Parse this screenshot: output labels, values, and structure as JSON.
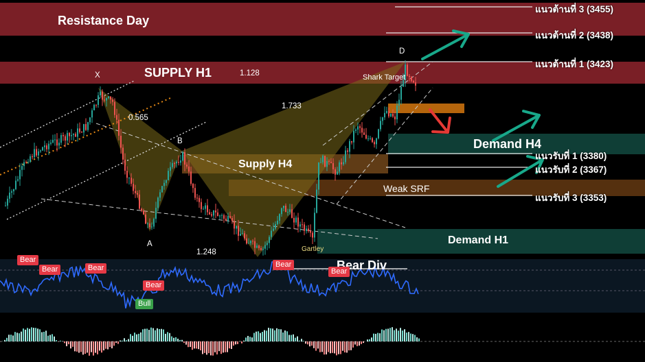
{
  "colors": {
    "up_candle": "#26a69a",
    "down_candle": "#ef5350",
    "resistance_zone": "#7a1f26",
    "demand_zone": "#0f3e36",
    "supply_h4": "#7a4a1a",
    "rsi_line": "#2f6bff",
    "bear_badge": "#e53945",
    "bull_badge": "#3aa14a",
    "arrow_teal": "#18a88a",
    "arrow_red": "#e53935",
    "fib_orange": "#e88a14"
  },
  "zones": {
    "resistance_day": "Resistance Day",
    "supply_h1": "SUPPLY H1",
    "supply_h4": "Supply H4",
    "weak_srf": "Weak SRF",
    "demand_h4": "Demand H4",
    "demand_h1": "Demand H1"
  },
  "levels": [
    {
      "label": "แนวต้านที่ 3 (3455)",
      "price": 3455
    },
    {
      "label": "แนวต้านที่ 2 (3438)",
      "price": 3438
    },
    {
      "label": "แนวต้านที่ 1 (3423)",
      "price": 3423
    },
    {
      "label": "แนวรับที่ 1 (3380)",
      "price": 3380
    },
    {
      "label": "แนวรับที่ 2 (3367)",
      "price": 3367
    },
    {
      "label": "แนวรับที่ 3 (3353)",
      "price": 3353
    }
  ],
  "pattern": {
    "points": {
      "x": "X",
      "a": "A",
      "b": "B",
      "d": "D"
    },
    "ratios": {
      "r1": "1.128",
      "r2": "0.565",
      "r3": "1.733",
      "r4": "1.248"
    },
    "shark_target": "Shark Target",
    "gartley": "Gartley"
  },
  "indicator": {
    "bear_div": "Bear Div",
    "badges": [
      {
        "type": "bear",
        "text": "Bear"
      },
      {
        "type": "bear",
        "text": "Bear"
      },
      {
        "type": "bear",
        "text": "Bear"
      },
      {
        "type": "bear",
        "text": "Bear"
      },
      {
        "type": "bull",
        "text": "Bull"
      },
      {
        "type": "bear",
        "text": "Bear"
      },
      {
        "type": "bear",
        "text": "Bear"
      }
    ]
  },
  "chart_data": {
    "type": "candlestick",
    "title": "",
    "ylabel": "",
    "price_levels": [
      3455,
      3438,
      3423,
      3380,
      3367,
      3353
    ],
    "fib_ratios": [
      1.128,
      0.565,
      1.733,
      1.248
    ],
    "pattern": "Shark / Gartley harmonic (X-A-B-D)",
    "subpanels": [
      "RSI with divergence badges",
      "momentum histogram"
    ]
  }
}
